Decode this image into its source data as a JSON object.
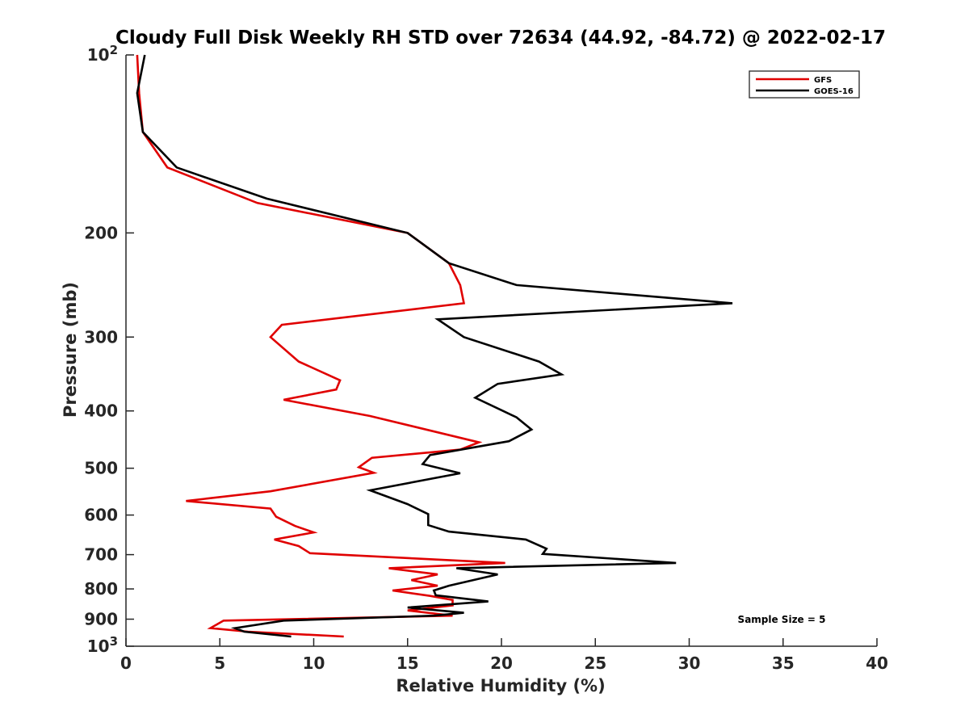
{
  "chart_data": {
    "type": "line",
    "title": "Cloudy Full Disk Weekly RH STD over 72634 (44.92, -84.72) @ 2022-02-17",
    "xlabel": "Relative Humidity (%)",
    "ylabel": "Pressure (mb)",
    "xlim": [
      0,
      40
    ],
    "ylim": [
      100,
      1000
    ],
    "y_scale": "log",
    "y_reversed": true,
    "x_ticks": [
      0,
      5,
      10,
      15,
      20,
      25,
      30,
      35,
      40
    ],
    "y_ticks": [
      {
        "value": 100,
        "base": "10",
        "exp": "2"
      },
      {
        "value": 200,
        "label": "200"
      },
      {
        "value": 300,
        "label": "300"
      },
      {
        "value": 400,
        "label": "400"
      },
      {
        "value": 500,
        "label": "500"
      },
      {
        "value": 600,
        "label": "600"
      },
      {
        "value": 700,
        "label": "700"
      },
      {
        "value": 800,
        "label": "800"
      },
      {
        "value": 900,
        "label": "900"
      },
      {
        "value": 1000,
        "base": "10",
        "exp": "3"
      }
    ],
    "grid": false,
    "legend_position": "top-right",
    "annotation": "Sample Size = 5",
    "series": [
      {
        "name": "GFS",
        "color": "#e00000",
        "points": [
          [
            0.6,
            100
          ],
          [
            0.7,
            116
          ],
          [
            0.9,
            135
          ],
          [
            2.2,
            155
          ],
          [
            7.0,
            178
          ],
          [
            15.0,
            200
          ],
          [
            17.2,
            225
          ],
          [
            17.8,
            245
          ],
          [
            18.0,
            263
          ],
          [
            8.3,
            286
          ],
          [
            7.7,
            300
          ],
          [
            9.2,
            330
          ],
          [
            11.4,
            355
          ],
          [
            11.2,
            368
          ],
          [
            8.4,
            383
          ],
          [
            13.0,
            408
          ],
          [
            18.8,
            452
          ],
          [
            17.8,
            465
          ],
          [
            13.1,
            480
          ],
          [
            12.4,
            498
          ],
          [
            13.2,
            509
          ],
          [
            7.7,
            547
          ],
          [
            3.2,
            568
          ],
          [
            7.7,
            585
          ],
          [
            8.0,
            604
          ],
          [
            9.0,
            626
          ],
          [
            10.0,
            642
          ],
          [
            7.9,
            660
          ],
          [
            9.2,
            677
          ],
          [
            9.8,
            696
          ],
          [
            20.2,
            723
          ],
          [
            14.0,
            738
          ],
          [
            16.6,
            756
          ],
          [
            15.2,
            773
          ],
          [
            16.6,
            790
          ],
          [
            14.2,
            805
          ],
          [
            16.2,
            822
          ],
          [
            17.4,
            835
          ],
          [
            17.4,
            853
          ],
          [
            15.0,
            870
          ],
          [
            17.4,
            888
          ],
          [
            5.2,
            905
          ],
          [
            4.5,
            932
          ],
          [
            6.5,
            945
          ],
          [
            11.6,
            963
          ]
        ]
      },
      {
        "name": "GOES-16",
        "color": "#000000",
        "points": [
          [
            1.0,
            100
          ],
          [
            0.6,
            116
          ],
          [
            0.9,
            135
          ],
          [
            2.7,
            155
          ],
          [
            7.5,
            175
          ],
          [
            15.0,
            200
          ],
          [
            17.2,
            225
          ],
          [
            20.8,
            245
          ],
          [
            32.3,
            263
          ],
          [
            16.6,
            280
          ],
          [
            18.0,
            300
          ],
          [
            22.0,
            330
          ],
          [
            23.2,
            347
          ],
          [
            19.8,
            360
          ],
          [
            18.6,
            380
          ],
          [
            20.8,
            410
          ],
          [
            21.6,
            430
          ],
          [
            20.4,
            450
          ],
          [
            16.2,
            475
          ],
          [
            15.8,
            492
          ],
          [
            17.8,
            510
          ],
          [
            13.0,
            545
          ],
          [
            15.0,
            575
          ],
          [
            16.1,
            598
          ],
          [
            16.1,
            624
          ],
          [
            17.2,
            640
          ],
          [
            21.3,
            660
          ],
          [
            22.4,
            684
          ],
          [
            22.2,
            698
          ],
          [
            29.3,
            723
          ],
          [
            17.6,
            738
          ],
          [
            19.8,
            756
          ],
          [
            17.2,
            790
          ],
          [
            16.4,
            805
          ],
          [
            16.5,
            820
          ],
          [
            19.3,
            840
          ],
          [
            15.0,
            860
          ],
          [
            18.0,
            878
          ],
          [
            16.4,
            888
          ],
          [
            8.4,
            905
          ],
          [
            5.8,
            932
          ],
          [
            6.3,
            945
          ],
          [
            8.8,
            963
          ]
        ]
      }
    ]
  }
}
